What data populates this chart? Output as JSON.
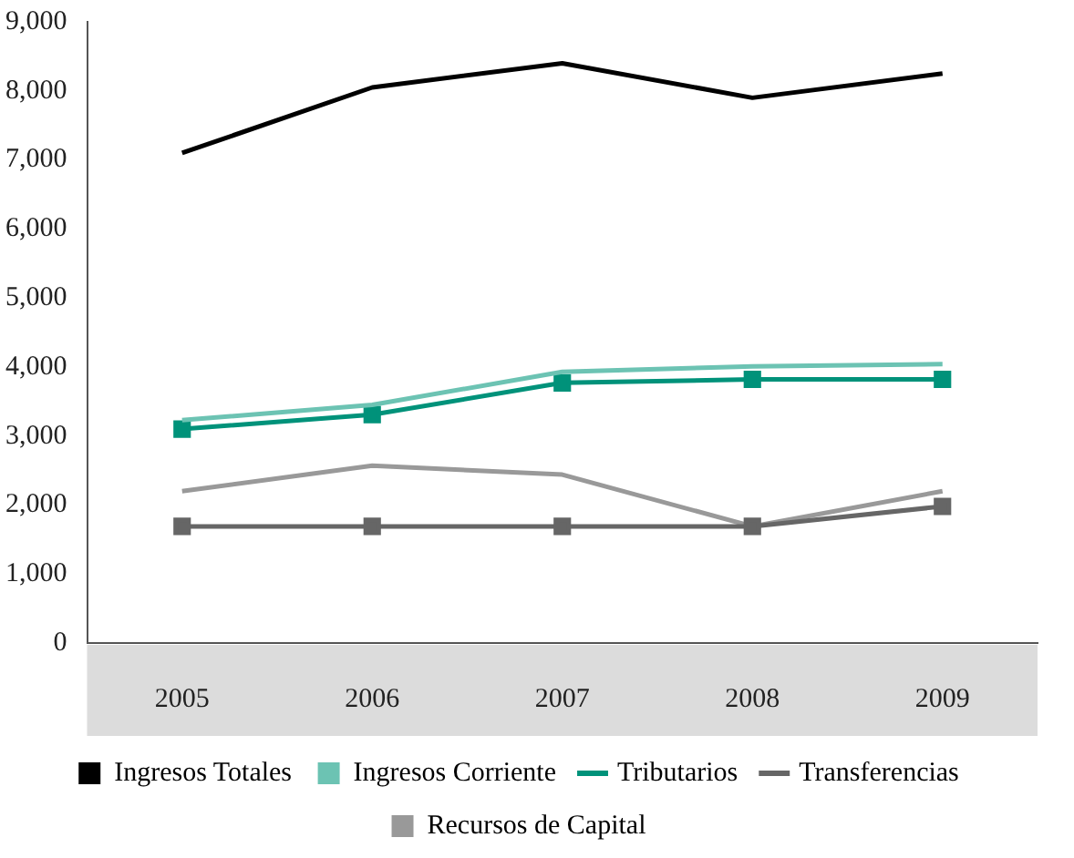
{
  "chart_data": {
    "type": "line",
    "categories": [
      "2005",
      "2006",
      "2007",
      "2008",
      "2009"
    ],
    "ylim": [
      0,
      9000
    ],
    "yticks": [
      {
        "value": 0,
        "label": "0"
      },
      {
        "value": 1000,
        "label": "1,000"
      },
      {
        "value": 2000,
        "label": "2,000"
      },
      {
        "value": 3000,
        "label": "3,000"
      },
      {
        "value": 4000,
        "label": "4,000"
      },
      {
        "value": 5000,
        "label": "5,000"
      },
      {
        "value": 6000,
        "label": "6,000"
      },
      {
        "value": 7000,
        "label": "7,000"
      },
      {
        "value": 8000,
        "label": "8,000"
      },
      {
        "value": 9000,
        "label": "9,000"
      }
    ],
    "grid": false,
    "legend": "bottom",
    "line_style": "solid",
    "series": [
      {
        "name": "Ingresos Totales",
        "color": "#000000",
        "marker": "none",
        "values": [
          7100,
          8050,
          8400,
          7900,
          8250
        ]
      },
      {
        "name": "Ingresos Corriente",
        "color": "#6cc3b3",
        "marker": "none",
        "values": [
          3230,
          3450,
          3930,
          4010,
          4040
        ]
      },
      {
        "name": "Tributarios",
        "color": "#00927a",
        "marker": "square",
        "values": [
          3100,
          3310,
          3770,
          3820,
          3820
        ]
      },
      {
        "name": "Transferencias",
        "color": "#666666",
        "marker": "square",
        "values": [
          1690,
          1690,
          1690,
          1690,
          1980
        ]
      },
      {
        "name": "Recursos de Capital",
        "color": "#999999",
        "marker": "none",
        "values": [
          2200,
          2570,
          2440,
          1690,
          2200
        ]
      }
    ]
  }
}
